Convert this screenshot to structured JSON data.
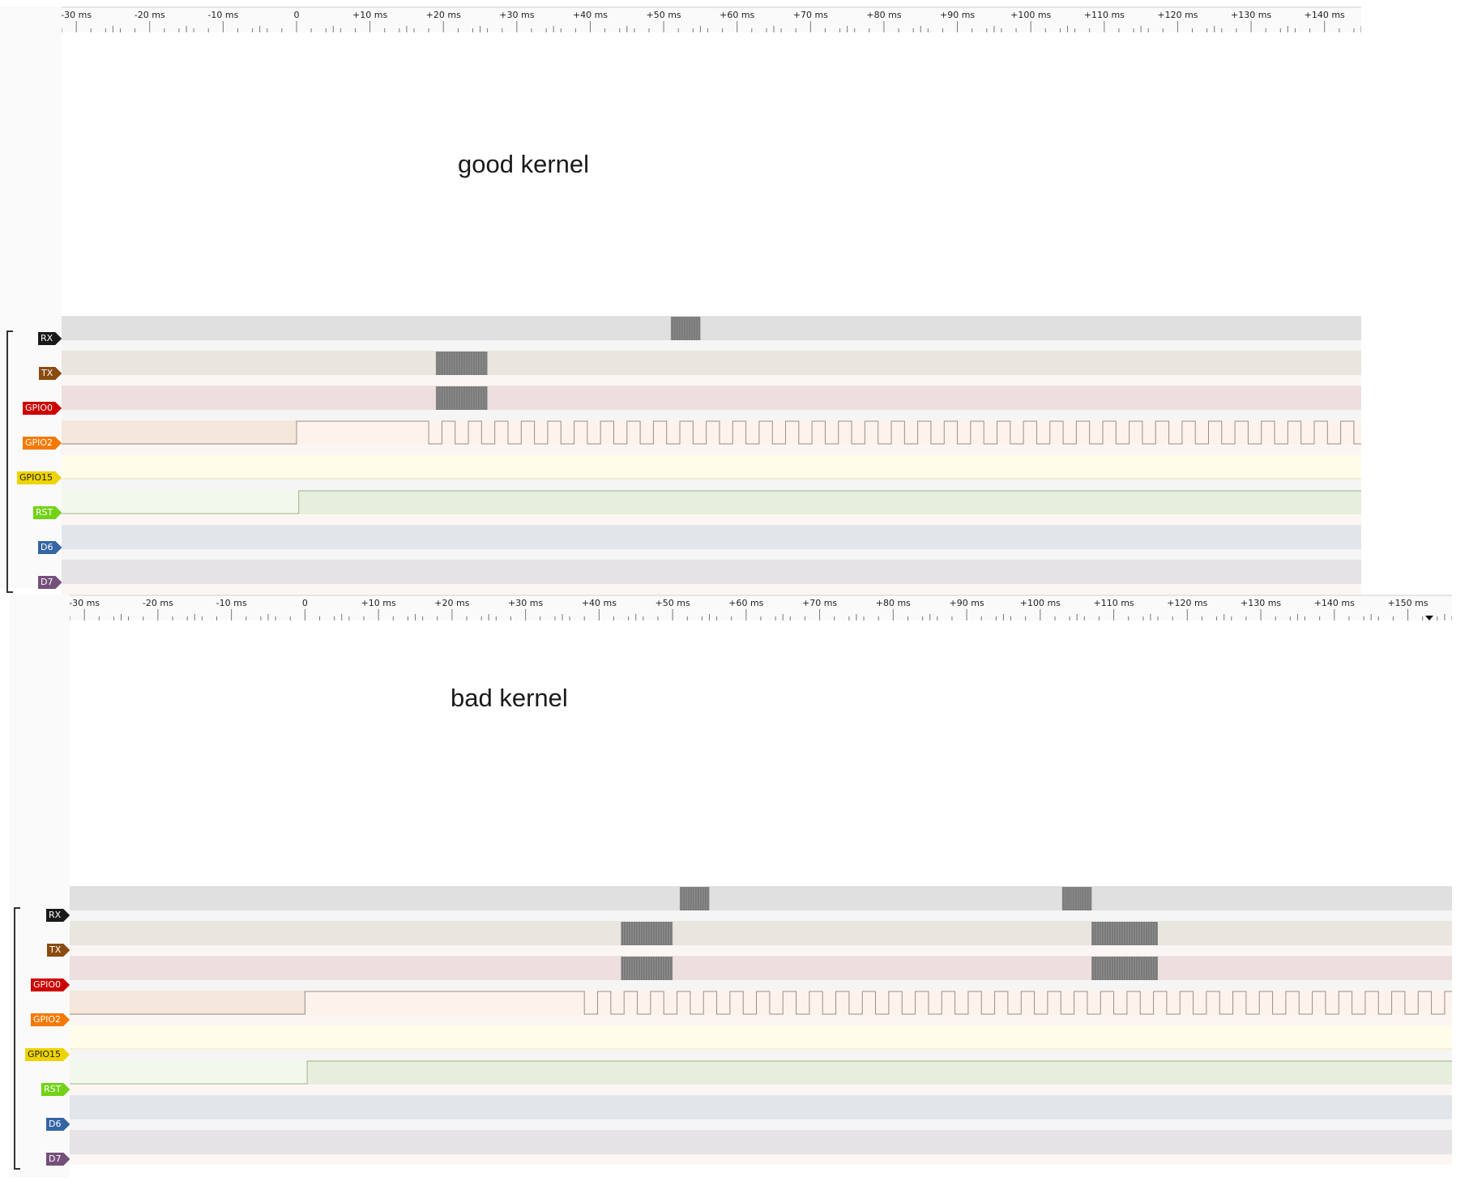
{
  "panels": [
    {
      "caption": "good kernel",
      "ruler_labels": [
        "-30 ms",
        "-20 ms",
        "-10 ms",
        "0",
        "+10 ms",
        "+20 ms",
        "+30 ms",
        "+40 ms",
        "+50 ms",
        "+60 ms",
        "+70 ms",
        "+80 ms",
        "+90 ms",
        "+100 ms",
        "+110 ms",
        "+120 ms",
        "+130 ms",
        "+140 ms"
      ],
      "time_range_ms": [
        -32,
        145
      ],
      "clock_start_ms": 18,
      "channels": [
        {
          "name": "RX",
          "color": "#1a1a1a",
          "bg": "#e0e0e0",
          "bursts_ms": [
            [
              51,
              55
            ]
          ]
        },
        {
          "name": "TX",
          "color": "#8a4b0f",
          "bg": "#e9e5df",
          "bursts_ms": [
            [
              19,
              26
            ]
          ]
        },
        {
          "name": "GPIO0",
          "color": "#cc0000",
          "bg": "#eedfdf",
          "bursts_ms": [
            [
              19,
              26
            ]
          ]
        },
        {
          "name": "GPIO2",
          "color": "#f57900",
          "bg": "#f5e7db",
          "bursts_ms": []
        },
        {
          "name": "GPIO15",
          "color": "#edd400",
          "bg": "#fffcea",
          "bursts_ms": []
        },
        {
          "name": "RST",
          "color": "#73d216",
          "bg": "#e7eedc",
          "bursts_ms": []
        },
        {
          "name": "D6",
          "color": "#3465a4",
          "bg": "#e2e6eb",
          "bursts_ms": []
        },
        {
          "name": "D7",
          "color": "#75507b",
          "bg": "#e6e3e6",
          "bursts_ms": []
        }
      ]
    },
    {
      "caption": "bad kernel",
      "ruler_labels": [
        "-30 ms",
        "-20 ms",
        "-10 ms",
        "0",
        "+10 ms",
        "+20 ms",
        "+30 ms",
        "+40 ms",
        "+50 ms",
        "+60 ms",
        "+70 ms",
        "+80 ms",
        "+90 ms",
        "+100 ms",
        "+110 ms",
        "+120 ms",
        "+130 ms",
        "+140 ms",
        "+150 ms"
      ],
      "time_range_ms": [
        -32,
        156
      ],
      "clock_start_ms": 38,
      "channels": [
        {
          "name": "RX",
          "color": "#1a1a1a",
          "bg": "#e0e0e0",
          "bursts_ms": [
            [
              51,
              55
            ],
            [
              103,
              107
            ]
          ]
        },
        {
          "name": "TX",
          "color": "#8a4b0f",
          "bg": "#e9e5df",
          "bursts_ms": [
            [
              43,
              50
            ],
            [
              107,
              116
            ]
          ]
        },
        {
          "name": "GPIO0",
          "color": "#cc0000",
          "bg": "#eedfdf",
          "bursts_ms": [
            [
              43,
              50
            ],
            [
              107,
              116
            ]
          ]
        },
        {
          "name": "GPIO2",
          "color": "#f57900",
          "bg": "#f5e7db",
          "bursts_ms": []
        },
        {
          "name": "GPIO15",
          "color": "#edd400",
          "bg": "#fffcea",
          "bursts_ms": []
        },
        {
          "name": "RST",
          "color": "#73d216",
          "bg": "#e7eedc",
          "bursts_ms": []
        },
        {
          "name": "D6",
          "color": "#3465a4",
          "bg": "#e2e6eb",
          "bursts_ms": []
        },
        {
          "name": "D7",
          "color": "#75507b",
          "bg": "#e6e3e6",
          "bursts_ms": []
        }
      ]
    }
  ]
}
